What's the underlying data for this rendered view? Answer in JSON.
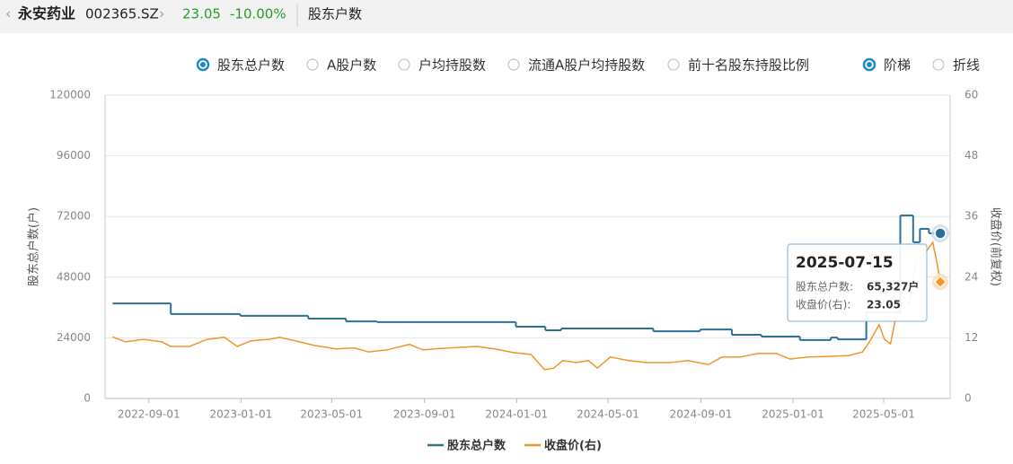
{
  "header": {
    "name": "永安药业",
    "code": "002365.SZ",
    "price": "23.05",
    "change": "-10.00%",
    "tab": "股东户数"
  },
  "controls": {
    "metrics": [
      {
        "label": "股东总户数",
        "selected": true
      },
      {
        "label": "A股户数",
        "selected": false
      },
      {
        "label": "户均持股数",
        "selected": false
      },
      {
        "label": "流通A股户均持股数",
        "selected": false
      },
      {
        "label": "前十名股东持股比例",
        "selected": false
      }
    ],
    "styles": [
      {
        "label": "阶梯",
        "selected": true
      },
      {
        "label": "折线",
        "selected": false
      }
    ]
  },
  "chart_data": {
    "type": "line",
    "ylabel": "股东总户数(户)",
    "y2label": "收盘价(前复权)",
    "xlim": [
      "2022-07-05",
      "2025-07-28"
    ],
    "xticks": [
      "2022-09-01",
      "2023-01-01",
      "2023-05-01",
      "2023-09-01",
      "2024-01-01",
      "2024-05-01",
      "2024-09-01",
      "2025-01-01",
      "2025-05-01"
    ],
    "ylim": [
      0,
      120000
    ],
    "yticks": [
      0,
      24000,
      48000,
      72000,
      96000,
      120000
    ],
    "y2lim": [
      0,
      60
    ],
    "y2ticks": [
      0,
      12,
      24,
      36,
      48,
      60
    ],
    "grid": true,
    "legend": "bottom",
    "series": [
      {
        "name": "股东总户数",
        "color": "#2d7199",
        "step": true,
        "x": [
          "2022-07-15",
          "2022-09-30",
          "2022-12-31",
          "2023-03-31",
          "2023-05-20",
          "2023-06-30",
          "2023-12-31",
          "2024-02-08",
          "2024-02-29",
          "2024-06-30",
          "2024-08-31",
          "2024-10-12",
          "2024-11-20",
          "2025-01-10",
          "2025-02-20",
          "2025-03-01",
          "2025-04-08",
          "2025-05-23",
          "2025-06-09",
          "2025-06-18",
          "2025-06-30",
          "2025-07-15"
        ],
        "values": [
          37600,
          33400,
          32700,
          31600,
          30500,
          30200,
          28400,
          27000,
          27700,
          26600,
          27300,
          25200,
          24500,
          23100,
          24100,
          23400,
          34100,
          72400,
          61800,
          67100,
          65327,
          65327
        ]
      },
      {
        "name": "收盘价(右)",
        "color": "#f0952a",
        "axis": "y2",
        "x": [
          "2022-07-15",
          "2022-08-01",
          "2022-08-25",
          "2022-09-18",
          "2022-09-30",
          "2022-10-25",
          "2022-11-17",
          "2022-12-10",
          "2022-12-27",
          "2023-01-14",
          "2023-02-07",
          "2023-02-21",
          "2023-03-14",
          "2023-04-08",
          "2023-05-07",
          "2023-05-31",
          "2023-06-19",
          "2023-07-13",
          "2023-08-12",
          "2023-08-30",
          "2023-09-22",
          "2023-10-16",
          "2023-11-09",
          "2023-12-03",
          "2023-12-27",
          "2024-01-20",
          "2024-02-07",
          "2024-02-19",
          "2024-03-02",
          "2024-03-20",
          "2024-04-05",
          "2024-04-17",
          "2024-05-04",
          "2024-05-28",
          "2024-06-21",
          "2024-07-22",
          "2024-08-15",
          "2024-09-11",
          "2024-09-29",
          "2024-10-23",
          "2024-11-16",
          "2024-12-10",
          "2024-12-28",
          "2025-01-21",
          "2025-02-14",
          "2025-03-16",
          "2025-04-03",
          "2025-04-13",
          "2025-04-25",
          "2025-05-02",
          "2025-05-10",
          "2025-05-18",
          "2025-05-26",
          "2025-06-04",
          "2025-06-13",
          "2025-06-25",
          "2025-07-05",
          "2025-07-10",
          "2025-07-15"
        ],
        "values": [
          12.2,
          11.2,
          11.7,
          11.2,
          10.3,
          10.3,
          11.7,
          12.1,
          10.3,
          11.4,
          11.7,
          12.1,
          11.4,
          10.5,
          9.8,
          10.0,
          9.2,
          9.6,
          10.7,
          9.6,
          9.9,
          10.1,
          10.3,
          9.8,
          9.1,
          8.7,
          5.7,
          6.0,
          7.5,
          7.1,
          7.5,
          6.0,
          8.2,
          7.5,
          7.1,
          7.1,
          7.5,
          6.7,
          8.2,
          8.2,
          8.9,
          8.9,
          7.8,
          8.2,
          8.3,
          8.5,
          9.2,
          11.4,
          14.6,
          11.7,
          10.8,
          16.7,
          20.2,
          18.5,
          27.3,
          28.8,
          30.9,
          27.3,
          23.05
        ]
      }
    ],
    "tooltip": {
      "title": "2025-07-15",
      "items": [
        {
          "label": "股东总户数:",
          "value": "65,327户"
        },
        {
          "label": "收盘价(右):",
          "value": "23.05"
        }
      ]
    }
  }
}
